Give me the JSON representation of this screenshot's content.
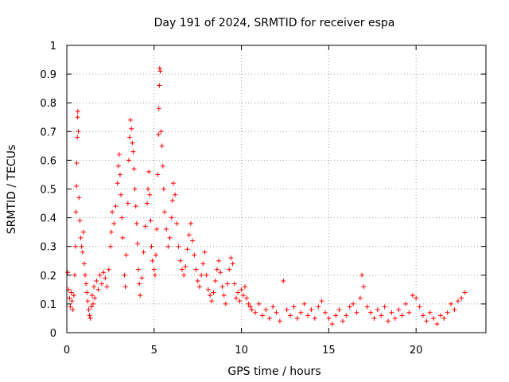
{
  "chart_data": {
    "type": "scatter",
    "title": "Day 191 of 2024, SRMTID for receiver espa",
    "xlabel": "GPS time / hours",
    "ylabel": "SRMTID / TECUs",
    "xlim": [
      0,
      24
    ],
    "ylim": [
      0,
      1
    ],
    "xticks": [
      0,
      5,
      10,
      15,
      20
    ],
    "yticks": [
      0,
      0.1,
      0.2,
      0.3,
      0.4,
      0.5,
      0.6,
      0.7,
      0.8,
      0.9,
      1
    ],
    "xtick_labels": [
      "0",
      "5",
      "10",
      "15",
      "20"
    ],
    "ytick_labels": [
      "0",
      "0.1",
      "0.2",
      "0.3",
      "0.4",
      "0.5",
      "0.6",
      "0.7",
      "0.8",
      "0.9",
      "1"
    ],
    "grid": true,
    "marker": "+",
    "series_color": "#ff0000",
    "series": [
      {
        "name": "SRMTID",
        "points": [
          [
            0.05,
            0.21
          ],
          [
            0.1,
            0.15
          ],
          [
            0.15,
            0.12
          ],
          [
            0.2,
            0.09
          ],
          [
            0.25,
            0.14
          ],
          [
            0.3,
            0.11
          ],
          [
            0.35,
            0.08
          ],
          [
            0.4,
            0.13
          ],
          [
            0.45,
            0.2
          ],
          [
            0.5,
            0.3
          ],
          [
            0.52,
            0.42
          ],
          [
            0.55,
            0.51
          ],
          [
            0.57,
            0.59
          ],
          [
            0.6,
            0.68
          ],
          [
            0.62,
            0.75
          ],
          [
            0.63,
            0.77
          ],
          [
            0.66,
            0.7
          ],
          [
            0.7,
            0.47
          ],
          [
            0.75,
            0.39
          ],
          [
            0.8,
            0.33
          ],
          [
            0.85,
            0.3
          ],
          [
            0.9,
            0.28
          ],
          [
            0.95,
            0.35
          ],
          [
            1.0,
            0.24
          ],
          [
            1.05,
            0.2
          ],
          [
            1.1,
            0.17
          ],
          [
            1.15,
            0.14
          ],
          [
            1.2,
            0.11
          ],
          [
            1.25,
            0.08
          ],
          [
            1.3,
            0.06
          ],
          [
            1.35,
            0.05
          ],
          [
            1.4,
            0.09
          ],
          [
            1.45,
            0.13
          ],
          [
            1.5,
            0.1
          ],
          [
            1.55,
            0.16
          ],
          [
            1.6,
            0.12
          ],
          [
            1.7,
            0.18
          ],
          [
            1.8,
            0.15
          ],
          [
            1.9,
            0.2
          ],
          [
            2.0,
            0.17
          ],
          [
            2.1,
            0.21
          ],
          [
            2.2,
            0.19
          ],
          [
            2.3,
            0.16
          ],
          [
            2.4,
            0.22
          ],
          [
            2.5,
            0.3
          ],
          [
            2.55,
            0.35
          ],
          [
            2.6,
            0.42
          ],
          [
            2.7,
            0.38
          ],
          [
            2.8,
            0.44
          ],
          [
            2.9,
            0.52
          ],
          [
            2.95,
            0.58
          ],
          [
            3.0,
            0.62
          ],
          [
            3.05,
            0.55
          ],
          [
            3.1,
            0.48
          ],
          [
            3.15,
            0.4
          ],
          [
            3.2,
            0.33
          ],
          [
            3.3,
            0.2
          ],
          [
            3.35,
            0.16
          ],
          [
            3.4,
            0.27
          ],
          [
            3.5,
            0.45
          ],
          [
            3.55,
            0.6
          ],
          [
            3.6,
            0.68
          ],
          [
            3.65,
            0.74
          ],
          [
            3.7,
            0.71
          ],
          [
            3.75,
            0.66
          ],
          [
            3.8,
            0.63
          ],
          [
            3.85,
            0.57
          ],
          [
            3.9,
            0.5
          ],
          [
            3.95,
            0.44
          ],
          [
            4.0,
            0.38
          ],
          [
            4.05,
            0.31
          ],
          [
            4.1,
            0.22
          ],
          [
            4.15,
            0.17
          ],
          [
            4.2,
            0.13
          ],
          [
            4.3,
            0.19
          ],
          [
            4.4,
            0.28
          ],
          [
            4.5,
            0.37
          ],
          [
            4.6,
            0.45
          ],
          [
            4.65,
            0.5
          ],
          [
            4.7,
            0.56
          ],
          [
            4.75,
            0.48
          ],
          [
            4.8,
            0.39
          ],
          [
            4.85,
            0.3
          ],
          [
            4.9,
            0.25
          ],
          [
            5.0,
            0.22
          ],
          [
            5.05,
            0.2
          ],
          [
            5.1,
            0.27
          ],
          [
            5.15,
            0.36
          ],
          [
            5.2,
            0.55
          ],
          [
            5.25,
            0.69
          ],
          [
            5.27,
            0.78
          ],
          [
            5.3,
            0.86
          ],
          [
            5.32,
            0.92
          ],
          [
            5.35,
            0.91
          ],
          [
            5.4,
            0.7
          ],
          [
            5.45,
            0.65
          ],
          [
            5.5,
            0.58
          ],
          [
            5.55,
            0.5
          ],
          [
            5.6,
            0.42
          ],
          [
            5.7,
            0.36
          ],
          [
            5.8,
            0.3
          ],
          [
            5.9,
            0.33
          ],
          [
            6.0,
            0.4
          ],
          [
            6.05,
            0.46
          ],
          [
            6.1,
            0.52
          ],
          [
            6.2,
            0.48
          ],
          [
            6.3,
            0.38
          ],
          [
            6.4,
            0.3
          ],
          [
            6.5,
            0.25
          ],
          [
            6.6,
            0.22
          ],
          [
            6.7,
            0.2
          ],
          [
            6.8,
            0.23
          ],
          [
            6.9,
            0.29
          ],
          [
            7.0,
            0.34
          ],
          [
            7.1,
            0.38
          ],
          [
            7.2,
            0.32
          ],
          [
            7.3,
            0.27
          ],
          [
            7.4,
            0.22
          ],
          [
            7.5,
            0.18
          ],
          [
            7.6,
            0.16
          ],
          [
            7.7,
            0.2
          ],
          [
            7.8,
            0.24
          ],
          [
            7.9,
            0.28
          ],
          [
            8.0,
            0.2
          ],
          [
            8.1,
            0.15
          ],
          [
            8.2,
            0.13
          ],
          [
            8.3,
            0.11
          ],
          [
            8.4,
            0.14
          ],
          [
            8.5,
            0.18
          ],
          [
            8.6,
            0.22
          ],
          [
            8.7,
            0.25
          ],
          [
            8.8,
            0.21
          ],
          [
            8.9,
            0.16
          ],
          [
            9.0,
            0.13
          ],
          [
            9.1,
            0.1
          ],
          [
            9.2,
            0.17
          ],
          [
            9.3,
            0.22
          ],
          [
            9.4,
            0.26
          ],
          [
            9.5,
            0.24
          ],
          [
            9.6,
            0.17
          ],
          [
            9.7,
            0.12
          ],
          [
            9.8,
            0.14
          ],
          [
            9.9,
            0.11
          ],
          [
            10.0,
            0.15
          ],
          [
            10.1,
            0.13
          ],
          [
            10.2,
            0.16
          ],
          [
            10.3,
            0.12
          ],
          [
            10.4,
            0.1
          ],
          [
            10.5,
            0.09
          ],
          [
            10.6,
            0.08
          ],
          [
            10.8,
            0.07
          ],
          [
            11.0,
            0.1
          ],
          [
            11.2,
            0.06
          ],
          [
            11.4,
            0.08
          ],
          [
            11.6,
            0.05
          ],
          [
            11.8,
            0.09
          ],
          [
            12.0,
            0.07
          ],
          [
            12.2,
            0.04
          ],
          [
            12.4,
            0.18
          ],
          [
            12.6,
            0.08
          ],
          [
            12.8,
            0.06
          ],
          [
            13.0,
            0.09
          ],
          [
            13.2,
            0.05
          ],
          [
            13.4,
            0.07
          ],
          [
            13.6,
            0.1
          ],
          [
            13.8,
            0.06
          ],
          [
            14.0,
            0.08
          ],
          [
            14.2,
            0.05
          ],
          [
            14.4,
            0.09
          ],
          [
            14.6,
            0.11
          ],
          [
            14.8,
            0.07
          ],
          [
            15.0,
            0.05
          ],
          [
            15.2,
            0.03
          ],
          [
            15.4,
            0.06
          ],
          [
            15.6,
            0.08
          ],
          [
            15.8,
            0.04
          ],
          [
            16.0,
            0.06
          ],
          [
            16.2,
            0.09
          ],
          [
            16.4,
            0.1
          ],
          [
            16.6,
            0.07
          ],
          [
            16.8,
            0.12
          ],
          [
            16.9,
            0.2
          ],
          [
            17.0,
            0.16
          ],
          [
            17.2,
            0.09
          ],
          [
            17.4,
            0.07
          ],
          [
            17.6,
            0.05
          ],
          [
            17.8,
            0.08
          ],
          [
            18.0,
            0.06
          ],
          [
            18.2,
            0.09
          ],
          [
            18.4,
            0.04
          ],
          [
            18.6,
            0.07
          ],
          [
            18.8,
            0.05
          ],
          [
            19.0,
            0.08
          ],
          [
            19.2,
            0.06
          ],
          [
            19.4,
            0.1
          ],
          [
            19.6,
            0.07
          ],
          [
            19.8,
            0.13
          ],
          [
            20.0,
            0.12
          ],
          [
            20.2,
            0.09
          ],
          [
            20.4,
            0.06
          ],
          [
            20.6,
            0.04
          ],
          [
            20.8,
            0.07
          ],
          [
            21.0,
            0.05
          ],
          [
            21.2,
            0.03
          ],
          [
            21.4,
            0.06
          ],
          [
            21.6,
            0.05
          ],
          [
            21.8,
            0.07
          ],
          [
            22.0,
            0.1
          ],
          [
            22.2,
            0.08
          ],
          [
            22.4,
            0.11
          ],
          [
            22.6,
            0.12
          ],
          [
            22.8,
            0.14
          ]
        ]
      }
    ]
  }
}
